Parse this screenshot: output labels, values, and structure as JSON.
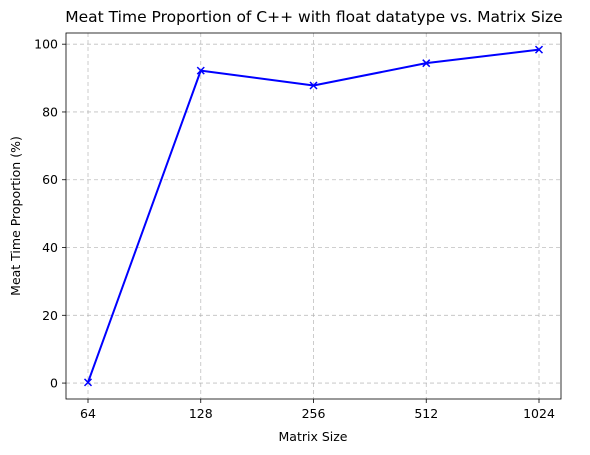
{
  "chart_data": {
    "type": "line",
    "title": "Meat Time Proportion of C++ with float datatype vs. Matrix Size",
    "xlabel": "Matrix Size",
    "ylabel": "Meat Time Proportion (%)",
    "categories": [
      "64",
      "128",
      "256",
      "512",
      "1024"
    ],
    "series": [
      {
        "values": [
          0.2,
          92.2,
          87.8,
          94.4,
          98.4
        ],
        "color": "#0000ff",
        "marker": "x"
      }
    ],
    "yticks": [
      0,
      20,
      40,
      60,
      80,
      100
    ],
    "ylim": [
      -4.7,
      103.3
    ],
    "grid": true,
    "legend": "none"
  }
}
